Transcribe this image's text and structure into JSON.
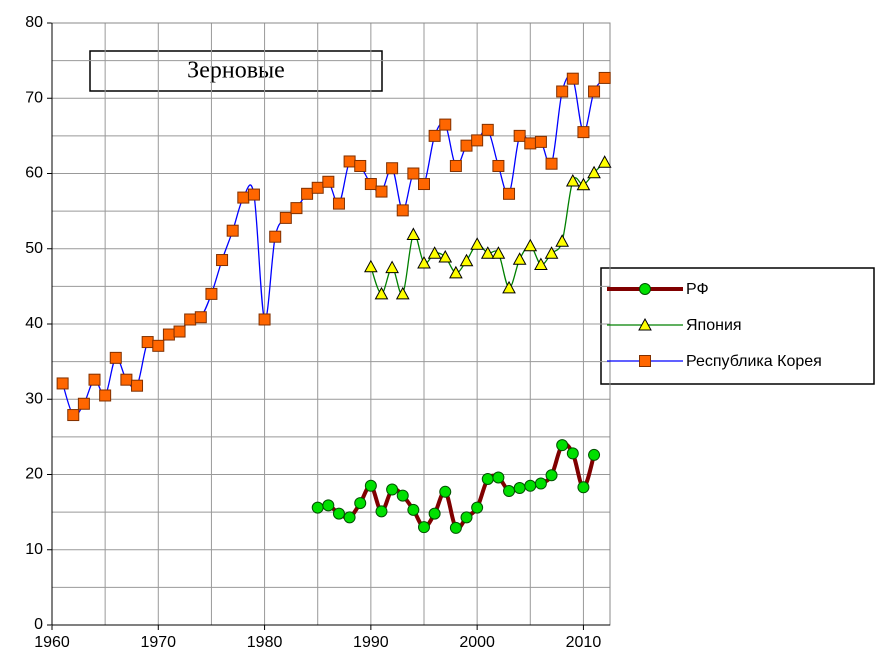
{
  "chart_data": {
    "type": "line",
    "title": "Зерновые",
    "xlim": [
      1960,
      2012.5
    ],
    "xticks": [
      1960,
      1970,
      1980,
      1990,
      2000,
      2010
    ],
    "ylim": [
      0,
      80
    ],
    "yticks": [
      0,
      10,
      20,
      30,
      40,
      50,
      60,
      70,
      80
    ],
    "grid": true,
    "legend": "right",
    "series": [
      {
        "name": "РФ",
        "color": "#800000",
        "marker": "circle",
        "marker_color": "#00e000",
        "x": [
          1985,
          1986,
          1987,
          1988,
          1989,
          1990,
          1991,
          1992,
          1993,
          1994,
          1995,
          1996,
          1997,
          1998,
          1999,
          2000,
          2001,
          2002,
          2003,
          2004,
          2005,
          2006,
          2007,
          2008,
          2009,
          2010,
          2011
        ],
        "values": [
          15.6,
          15.9,
          14.8,
          14.3,
          16.2,
          18.5,
          15.1,
          18.0,
          17.2,
          15.3,
          13.0,
          14.8,
          17.7,
          12.9,
          14.3,
          15.6,
          19.4,
          19.6,
          17.8,
          18.2,
          18.5,
          18.8,
          19.9,
          23.9,
          22.8,
          18.3,
          22.6
        ]
      },
      {
        "name": "Япония",
        "color": "#008000",
        "marker": "triangle",
        "marker_color": "#ffff00",
        "x": [
          1990,
          1991,
          1992,
          1993,
          1994,
          1995,
          1996,
          1997,
          1998,
          1999,
          2000,
          2001,
          2002,
          2003,
          2004,
          2005,
          2006,
          2007,
          2008,
          2009,
          2010,
          2011,
          2012
        ],
        "values": [
          47.6,
          44.0,
          47.5,
          44.0,
          51.9,
          48.1,
          49.4,
          48.9,
          46.8,
          48.4,
          50.6,
          49.4,
          49.4,
          44.8,
          48.6,
          50.4,
          47.9,
          49.4,
          51.0,
          59.0,
          58.5,
          60.1,
          61.5
        ]
      },
      {
        "name": "Республика Корея",
        "color": "#0000ff",
        "marker": "square",
        "marker_color": "#ff6600",
        "x": [
          1961,
          1962,
          1963,
          1964,
          1965,
          1966,
          1967,
          1968,
          1969,
          1970,
          1971,
          1972,
          1973,
          1974,
          1975,
          1976,
          1977,
          1978,
          1979,
          1980,
          1981,
          1982,
          1983,
          1984,
          1985,
          1986,
          1987,
          1988,
          1989,
          1990,
          1991,
          1992,
          1993,
          1994,
          1995,
          1996,
          1997,
          1998,
          1999,
          2000,
          2001,
          2002,
          2003,
          2004,
          2005,
          2006,
          2007,
          2008,
          2009,
          2010,
          2011,
          2012
        ],
        "values": [
          32.1,
          27.9,
          29.4,
          32.6,
          30.5,
          35.5,
          32.6,
          31.8,
          37.6,
          37.1,
          38.6,
          39.0,
          40.6,
          40.9,
          44.0,
          48.5,
          52.4,
          56.8,
          57.2,
          40.6,
          51.6,
          54.1,
          55.4,
          57.3,
          58.1,
          58.9,
          56.0,
          61.6,
          61.0,
          58.6,
          57.6,
          60.7,
          55.1,
          60.0,
          58.6,
          65.0,
          66.5,
          61.0,
          63.7,
          64.4,
          65.8,
          61.0,
          57.3,
          65.0,
          64.0,
          64.2,
          61.3,
          70.9,
          72.6,
          65.5,
          70.9,
          72.7
        ]
      }
    ]
  }
}
